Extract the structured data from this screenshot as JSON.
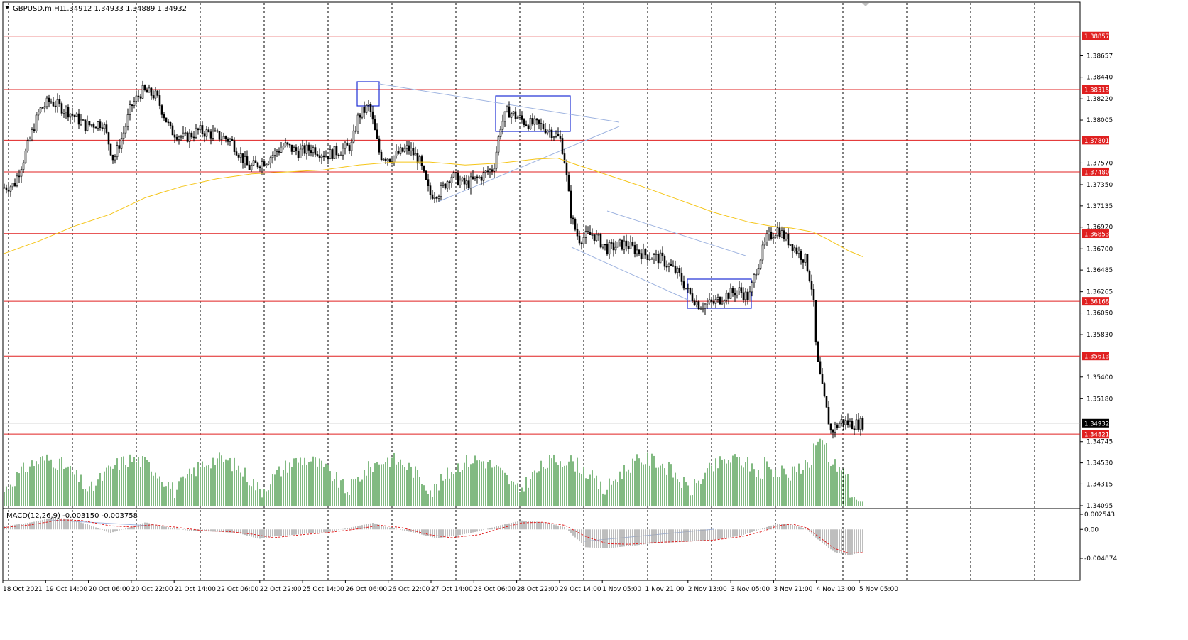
{
  "header": {
    "symbol": "GBPUSD.m,H1",
    "ohlc": "1.34912 1.34933 1.34889 1.34932"
  },
  "macd": {
    "label": "MACD(12,26,9) -0.003150 -0.003758",
    "ticks": [
      "0.002543",
      "0.00",
      "-0.004874"
    ]
  },
  "chart_data": {
    "type": "candlestick",
    "instrument": "GBPUSD.m",
    "timeframe": "H1",
    "price_range": [
      1.34095,
      1.391
    ],
    "price_ticks": [
      "1.38657",
      "1.38440",
      "1.38220",
      "1.38005",
      "1.37570",
      "1.37350",
      "1.37135",
      "1.36920",
      "1.36700",
      "1.36485",
      "1.36265",
      "1.36050",
      "1.35830",
      "1.35400",
      "1.35180",
      "1.34745",
      "1.34530",
      "1.34315",
      "1.34095"
    ],
    "levels": [
      {
        "value": 1.38857,
        "label": "1.38857"
      },
      {
        "value": 1.38315,
        "label": "1.38315"
      },
      {
        "value": 1.37801,
        "label": "1.37801"
      },
      {
        "value": 1.3748,
        "label": "1.37480"
      },
      {
        "value": 1.36853,
        "label": "1.36853"
      },
      {
        "value": 1.36168,
        "label": "1.36168"
      },
      {
        "value": 1.35613,
        "label": "1.35613"
      },
      {
        "value": 1.34821,
        "label": "1.34821"
      }
    ],
    "current_price": {
      "value": 1.34932,
      "label": "1.34932"
    },
    "time_labels": [
      "18 Oct 2021",
      "19 Oct 14:00",
      "20 Oct 06:00",
      "20 Oct 22:00",
      "21 Oct 14:00",
      "22 Oct 06:00",
      "22 Oct 22:00",
      "25 Oct 14:00",
      "26 Oct 06:00",
      "26 Oct 22:00",
      "27 Oct 14:00",
      "28 Oct 06:00",
      "28 Oct 22:00",
      "29 Oct 14:00",
      "1 Nov 05:00",
      "1 Nov 21:00",
      "2 Nov 13:00",
      "3 Nov 05:00",
      "3 Nov 21:00",
      "4 Nov 13:00",
      "5 Nov 05:00"
    ],
    "price_path": [
      [
        0,
        1.3732
      ],
      [
        0.015,
        1.3735
      ],
      [
        0.03,
        1.3765
      ],
      [
        0.05,
        1.381
      ],
      [
        0.065,
        1.382
      ],
      [
        0.09,
        1.381
      ],
      [
        0.115,
        1.3795
      ],
      [
        0.14,
        1.3798
      ],
      [
        0.155,
        1.376
      ],
      [
        0.17,
        1.379
      ],
      [
        0.18,
        1.3815
      ],
      [
        0.195,
        1.383
      ],
      [
        0.215,
        1.3825
      ],
      [
        0.235,
        1.379
      ],
      [
        0.255,
        1.3782
      ],
      [
        0.275,
        1.379
      ],
      [
        0.3,
        1.3785
      ],
      [
        0.32,
        1.378
      ],
      [
        0.345,
        1.3752
      ],
      [
        0.37,
        1.376
      ],
      [
        0.395,
        1.3775
      ],
      [
        0.415,
        1.3768
      ],
      [
        0.435,
        1.3772
      ],
      [
        0.455,
        1.3765
      ],
      [
        0.475,
        1.377
      ],
      [
        0.49,
        1.3775
      ],
      [
        0.5,
        1.3805
      ],
      [
        0.515,
        1.3815
      ],
      [
        0.53,
        1.3765
      ],
      [
        0.545,
        1.3762
      ],
      [
        0.57,
        1.3772
      ],
      [
        0.585,
        1.376
      ],
      [
        0.6,
        1.3725
      ],
      [
        0.615,
        1.3728
      ],
      [
        0.63,
        1.3745
      ],
      [
        0.65,
        1.3735
      ],
      [
        0.67,
        1.3742
      ],
      [
        0.69,
        1.3752
      ],
      [
        0.7,
        1.3795
      ],
      [
        0.71,
        1.381
      ],
      [
        0.735,
        1.3798
      ],
      [
        0.755,
        1.3795
      ],
      [
        0.77,
        1.379
      ],
      [
        0.785,
        1.378
      ],
      [
        0.79,
        1.376
      ],
      [
        0.8,
        1.37
      ],
      [
        0.81,
        1.368
      ],
      [
        0.83,
        1.3685
      ],
      [
        0.85,
        1.367
      ],
      [
        0.875,
        1.3675
      ],
      [
        0.9,
        1.3665
      ],
      [
        0.925,
        1.366
      ],
      [
        0.95,
        1.3645
      ],
      [
        0.965,
        1.3625
      ],
      [
        0.98,
        1.3613
      ],
      [
        1.0,
        1.3615
      ],
      [
        1.015,
        1.3622
      ],
      [
        1.035,
        1.3628
      ],
      [
        1.05,
        1.362
      ],
      [
        1.06,
        1.365
      ],
      [
        1.075,
        1.368
      ],
      [
        1.09,
        1.369
      ],
      [
        1.1,
        1.3682
      ],
      [
        1.115,
        1.367
      ],
      [
        1.13,
        1.3658
      ],
      [
        1.14,
        1.3625
      ],
      [
        1.145,
        1.356
      ],
      [
        1.155,
        1.352
      ],
      [
        1.165,
        1.3485
      ],
      [
        1.18,
        1.3495
      ],
      [
        1.195,
        1.3492
      ],
      [
        1.21,
        1.3493
      ]
    ],
    "ma_path": [
      [
        0,
        1.3665
      ],
      [
        0.05,
        1.3678
      ],
      [
        0.1,
        1.3693
      ],
      [
        0.15,
        1.3705
      ],
      [
        0.2,
        1.3722
      ],
      [
        0.25,
        1.3733
      ],
      [
        0.3,
        1.3741
      ],
      [
        0.35,
        1.3746
      ],
      [
        0.4,
        1.3748
      ],
      [
        0.45,
        1.375
      ],
      [
        0.5,
        1.3755
      ],
      [
        0.55,
        1.3758
      ],
      [
        0.6,
        1.3758
      ],
      [
        0.65,
        1.3755
      ],
      [
        0.7,
        1.3757
      ],
      [
        0.75,
        1.3761
      ],
      [
        0.78,
        1.3762
      ],
      [
        0.8,
        1.3757
      ],
      [
        0.85,
        1.3745
      ],
      [
        0.9,
        1.3733
      ],
      [
        0.95,
        1.372
      ],
      [
        1.0,
        1.3707
      ],
      [
        1.05,
        1.3697
      ],
      [
        1.08,
        1.3693
      ],
      [
        1.11,
        1.3691
      ],
      [
        1.14,
        1.3687
      ],
      [
        1.16,
        1.368
      ],
      [
        1.19,
        1.3668
      ],
      [
        1.21,
        1.3662
      ]
    ],
    "macd_hist_path": [
      [
        0,
        0.0005
      ],
      [
        0.04,
        0.0012
      ],
      [
        0.07,
        0.002
      ],
      [
        0.09,
        0.0018
      ],
      [
        0.12,
        0.0008
      ],
      [
        0.15,
        -0.0006
      ],
      [
        0.18,
        0.0004
      ],
      [
        0.2,
        0.0012
      ],
      [
        0.22,
        0.0006
      ],
      [
        0.26,
        -0.0002
      ],
      [
        0.3,
        -0.0004
      ],
      [
        0.33,
        -0.0006
      ],
      [
        0.36,
        -0.0016
      ],
      [
        0.38,
        -0.0012
      ],
      [
        0.42,
        -0.0008
      ],
      [
        0.46,
        -0.0004
      ],
      [
        0.5,
        0.0006
      ],
      [
        0.52,
        0.0011
      ],
      [
        0.54,
        0.0004
      ],
      [
        0.58,
        -0.0006
      ],
      [
        0.61,
        -0.0015
      ],
      [
        0.64,
        -0.001
      ],
      [
        0.67,
        -0.0003
      ],
      [
        0.7,
        0.0007
      ],
      [
        0.73,
        0.0015
      ],
      [
        0.76,
        0.0012
      ],
      [
        0.79,
        0.0004
      ],
      [
        0.8,
        -0.0008
      ],
      [
        0.82,
        -0.003
      ],
      [
        0.85,
        -0.0032
      ],
      [
        0.88,
        -0.0028
      ],
      [
        0.92,
        -0.0023
      ],
      [
        0.96,
        -0.0021
      ],
      [
        1.0,
        -0.0018
      ],
      [
        1.04,
        -0.001
      ],
      [
        1.07,
        0.0002
      ],
      [
        1.09,
        0.001
      ],
      [
        1.11,
        0.0008
      ],
      [
        1.13,
        0.0001
      ],
      [
        1.15,
        -0.002
      ],
      [
        1.17,
        -0.0038
      ],
      [
        1.19,
        -0.0044
      ],
      [
        1.21,
        -0.0038
      ]
    ],
    "macd_signal_path": [
      [
        0,
        0.0003
      ],
      [
        0.04,
        0.0008
      ],
      [
        0.08,
        0.0016
      ],
      [
        0.11,
        0.0015
      ],
      [
        0.15,
        0.0006
      ],
      [
        0.18,
        0.0004
      ],
      [
        0.21,
        0.0008
      ],
      [
        0.24,
        0.0004
      ],
      [
        0.28,
        -0.0002
      ],
      [
        0.32,
        -0.0004
      ],
      [
        0.35,
        -0.0008
      ],
      [
        0.38,
        -0.0014
      ],
      [
        0.42,
        -0.0009
      ],
      [
        0.46,
        -0.0005
      ],
      [
        0.5,
        0.0001
      ],
      [
        0.53,
        0.0007
      ],
      [
        0.56,
        0.0003
      ],
      [
        0.6,
        -0.0009
      ],
      [
        0.63,
        -0.0014
      ],
      [
        0.67,
        -0.0009
      ],
      [
        0.7,
        0.0002
      ],
      [
        0.73,
        0.0011
      ],
      [
        0.76,
        0.0012
      ],
      [
        0.79,
        0.0007
      ],
      [
        0.82,
        -0.0012
      ],
      [
        0.85,
        -0.0024
      ],
      [
        0.88,
        -0.0025
      ],
      [
        0.92,
        -0.0022
      ],
      [
        0.96,
        -0.002
      ],
      [
        1.0,
        -0.0018
      ],
      [
        1.04,
        -0.0012
      ],
      [
        1.07,
        -0.0003
      ],
      [
        1.09,
        0.0006
      ],
      [
        1.11,
        0.0009
      ],
      [
        1.13,
        0.0003
      ],
      [
        1.15,
        -0.0014
      ],
      [
        1.17,
        -0.0032
      ],
      [
        1.19,
        -0.004
      ],
      [
        1.21,
        -0.0039
      ]
    ]
  }
}
